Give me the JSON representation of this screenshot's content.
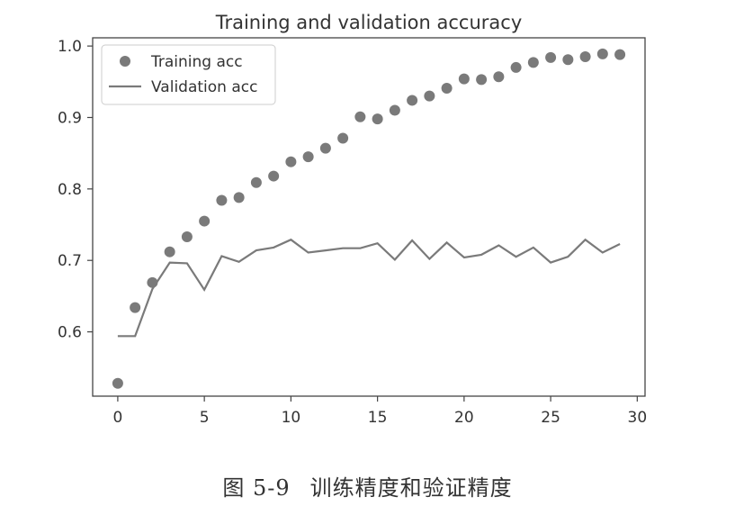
{
  "caption": {
    "label": "图 5-9",
    "text": "训练精度和验证精度"
  },
  "chart_data": {
    "type": "line",
    "title": "Training and validation accuracy",
    "xlabel": "",
    "ylabel": "",
    "xlim": [
      -1.45,
      30.45
    ],
    "ylim": [
      0.51,
      1.0115
    ],
    "xticks": [
      0,
      5,
      10,
      15,
      20,
      25,
      30
    ],
    "yticks": [
      0.6,
      0.7,
      0.8,
      0.9,
      1.0
    ],
    "ytick_labels": [
      "0.6",
      "0.7",
      "0.8",
      "0.9",
      "1.0"
    ],
    "grid": false,
    "legend": "top-left",
    "colors": {
      "training": "#7a7a7a",
      "validation": "#7a7a7a",
      "axis": "#444444",
      "text": "#333333"
    },
    "x": [
      0,
      1,
      2,
      3,
      4,
      5,
      6,
      7,
      8,
      9,
      10,
      11,
      12,
      13,
      14,
      15,
      16,
      17,
      18,
      19,
      20,
      21,
      22,
      23,
      24,
      25,
      26,
      27,
      28,
      29
    ],
    "series": [
      {
        "name": "Training acc",
        "style": "scatter",
        "values": [
          0.528,
          0.634,
          0.669,
          0.712,
          0.733,
          0.755,
          0.784,
          0.788,
          0.809,
          0.818,
          0.838,
          0.845,
          0.857,
          0.871,
          0.901,
          0.898,
          0.91,
          0.924,
          0.93,
          0.941,
          0.954,
          0.953,
          0.957,
          0.97,
          0.977,
          0.984,
          0.981,
          0.985,
          0.989,
          0.988
        ]
      },
      {
        "name": "Validation acc",
        "style": "line",
        "values": [
          0.594,
          0.594,
          0.66,
          0.697,
          0.696,
          0.659,
          0.706,
          0.698,
          0.714,
          0.718,
          0.729,
          0.711,
          0.714,
          0.717,
          0.717,
          0.724,
          0.701,
          0.728,
          0.702,
          0.725,
          0.704,
          0.708,
          0.721,
          0.705,
          0.718,
          0.697,
          0.705,
          0.729,
          0.711,
          0.723
        ]
      }
    ]
  }
}
